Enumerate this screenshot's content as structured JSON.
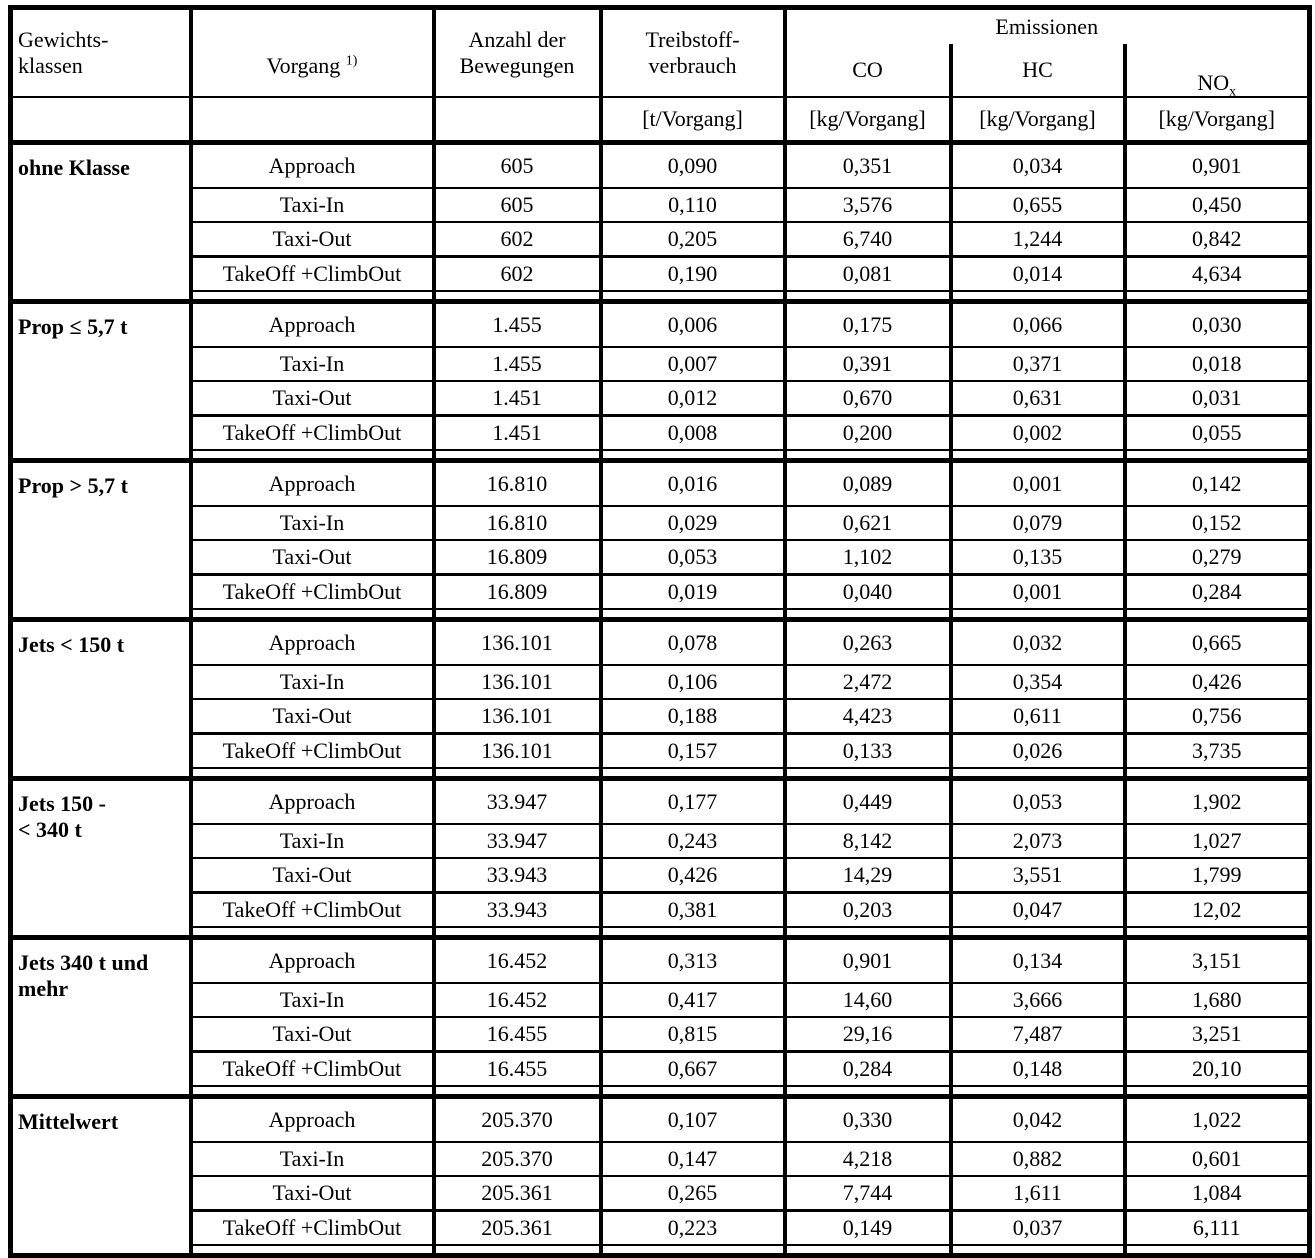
{
  "colors": {
    "border": "#000000",
    "background": "#ffffff",
    "text": "#000000"
  },
  "table": {
    "headers": {
      "weight_class": "Gewichts-\nklassen",
      "operation": "Vorgang",
      "operation_footnote": "1)",
      "movements": "Anzahl der\nBewegungen",
      "fuel": "Treibstoff-\nverbrauch",
      "emissions": "Emissionen",
      "co": "CO",
      "hc": "HC",
      "nox_base": "NO",
      "nox_sub": "x"
    },
    "units": {
      "fuel": "[t/Vorgang]",
      "co": "[kg/Vorgang]",
      "hc": "[kg/Vorgang]",
      "nox": "[kg/Vorgang]"
    },
    "groups": [
      {
        "class": "ohne Klasse",
        "rows": [
          {
            "vorgang": "Approach",
            "bewegungen": "605",
            "treibstoff": "0,090",
            "co": "0,351",
            "hc": "0,034",
            "nox": "0,901"
          },
          {
            "vorgang": "Taxi-In",
            "bewegungen": "605",
            "treibstoff": "0,110",
            "co": "3,576",
            "hc": "0,655",
            "nox": "0,450"
          },
          {
            "vorgang": "Taxi-Out",
            "bewegungen": "602",
            "treibstoff": "0,205",
            "co": "6,740",
            "hc": "1,244",
            "nox": "0,842"
          },
          {
            "vorgang": "TakeOff +ClimbOut",
            "bewegungen": "602",
            "treibstoff": "0,190",
            "co": "0,081",
            "hc": "0,014",
            "nox": "4,634"
          }
        ]
      },
      {
        "class": "Prop ≤ 5,7 t",
        "rows": [
          {
            "vorgang": "Approach",
            "bewegungen": "1.455",
            "treibstoff": "0,006",
            "co": "0,175",
            "hc": "0,066",
            "nox": "0,030"
          },
          {
            "vorgang": "Taxi-In",
            "bewegungen": "1.455",
            "treibstoff": "0,007",
            "co": "0,391",
            "hc": "0,371",
            "nox": "0,018"
          },
          {
            "vorgang": "Taxi-Out",
            "bewegungen": "1.451",
            "treibstoff": "0,012",
            "co": "0,670",
            "hc": "0,631",
            "nox": "0,031"
          },
          {
            "vorgang": "TakeOff +ClimbOut",
            "bewegungen": "1.451",
            "treibstoff": "0,008",
            "co": "0,200",
            "hc": "0,002",
            "nox": "0,055"
          }
        ]
      },
      {
        "class": "Prop > 5,7 t",
        "rows": [
          {
            "vorgang": "Approach",
            "bewegungen": "16.810",
            "treibstoff": "0,016",
            "co": "0,089",
            "hc": "0,001",
            "nox": "0,142"
          },
          {
            "vorgang": "Taxi-In",
            "bewegungen": "16.810",
            "treibstoff": "0,029",
            "co": "0,621",
            "hc": "0,079",
            "nox": "0,152"
          },
          {
            "vorgang": "Taxi-Out",
            "bewegungen": "16.809",
            "treibstoff": "0,053",
            "co": "1,102",
            "hc": "0,135",
            "nox": "0,279"
          },
          {
            "vorgang": "TakeOff +ClimbOut",
            "bewegungen": "16.809",
            "treibstoff": "0,019",
            "co": "0,040",
            "hc": "0,001",
            "nox": "0,284"
          }
        ]
      },
      {
        "class": "Jets < 150 t",
        "rows": [
          {
            "vorgang": "Approach",
            "bewegungen": "136.101",
            "treibstoff": "0,078",
            "co": "0,263",
            "hc": "0,032",
            "nox": "0,665"
          },
          {
            "vorgang": "Taxi-In",
            "bewegungen": "136.101",
            "treibstoff": "0,106",
            "co": "2,472",
            "hc": "0,354",
            "nox": "0,426"
          },
          {
            "vorgang": "Taxi-Out",
            "bewegungen": "136.101",
            "treibstoff": "0,188",
            "co": "4,423",
            "hc": "0,611",
            "nox": "0,756"
          },
          {
            "vorgang": "TakeOff +ClimbOut",
            "bewegungen": "136.101",
            "treibstoff": "0,157",
            "co": "0,133",
            "hc": "0,026",
            "nox": "3,735"
          }
        ]
      },
      {
        "class": "Jets 150 -\n< 340 t",
        "rows": [
          {
            "vorgang": "Approach",
            "bewegungen": "33.947",
            "treibstoff": "0,177",
            "co": "0,449",
            "hc": "0,053",
            "nox": "1,902"
          },
          {
            "vorgang": "Taxi-In",
            "bewegungen": "33.947",
            "treibstoff": "0,243",
            "co": "8,142",
            "hc": "2,073",
            "nox": "1,027"
          },
          {
            "vorgang": "Taxi-Out",
            "bewegungen": "33.943",
            "treibstoff": "0,426",
            "co": "14,29",
            "hc": "3,551",
            "nox": "1,799"
          },
          {
            "vorgang": "TakeOff +ClimbOut",
            "bewegungen": "33.943",
            "treibstoff": "0,381",
            "co": "0,203",
            "hc": "0,047",
            "nox": "12,02"
          }
        ]
      },
      {
        "class": "Jets 340 t und\nmehr",
        "rows": [
          {
            "vorgang": "Approach",
            "bewegungen": "16.452",
            "treibstoff": "0,313",
            "co": "0,901",
            "hc": "0,134",
            "nox": "3,151"
          },
          {
            "vorgang": "Taxi-In",
            "bewegungen": "16.452",
            "treibstoff": "0,417",
            "co": "14,60",
            "hc": "3,666",
            "nox": "1,680"
          },
          {
            "vorgang": "Taxi-Out",
            "bewegungen": "16.455",
            "treibstoff": "0,815",
            "co": "29,16",
            "hc": "7,487",
            "nox": "3,251"
          },
          {
            "vorgang": "TakeOff +ClimbOut",
            "bewegungen": "16.455",
            "treibstoff": "0,667",
            "co": "0,284",
            "hc": "0,148",
            "nox": "20,10"
          }
        ]
      },
      {
        "class": "Mittelwert",
        "rows": [
          {
            "vorgang": "Approach",
            "bewegungen": "205.370",
            "treibstoff": "0,107",
            "co": "0,330",
            "hc": "0,042",
            "nox": "1,022"
          },
          {
            "vorgang": "Taxi-In",
            "bewegungen": "205.370",
            "treibstoff": "0,147",
            "co": "4,218",
            "hc": "0,882",
            "nox": "0,601"
          },
          {
            "vorgang": "Taxi-Out",
            "bewegungen": "205.361",
            "treibstoff": "0,265",
            "co": "7,744",
            "hc": "1,611",
            "nox": "1,084"
          },
          {
            "vorgang": "TakeOff +ClimbOut",
            "bewegungen": "205.361",
            "treibstoff": "0,223",
            "co": "0,149",
            "hc": "0,037",
            "nox": "6,111"
          }
        ]
      }
    ]
  }
}
